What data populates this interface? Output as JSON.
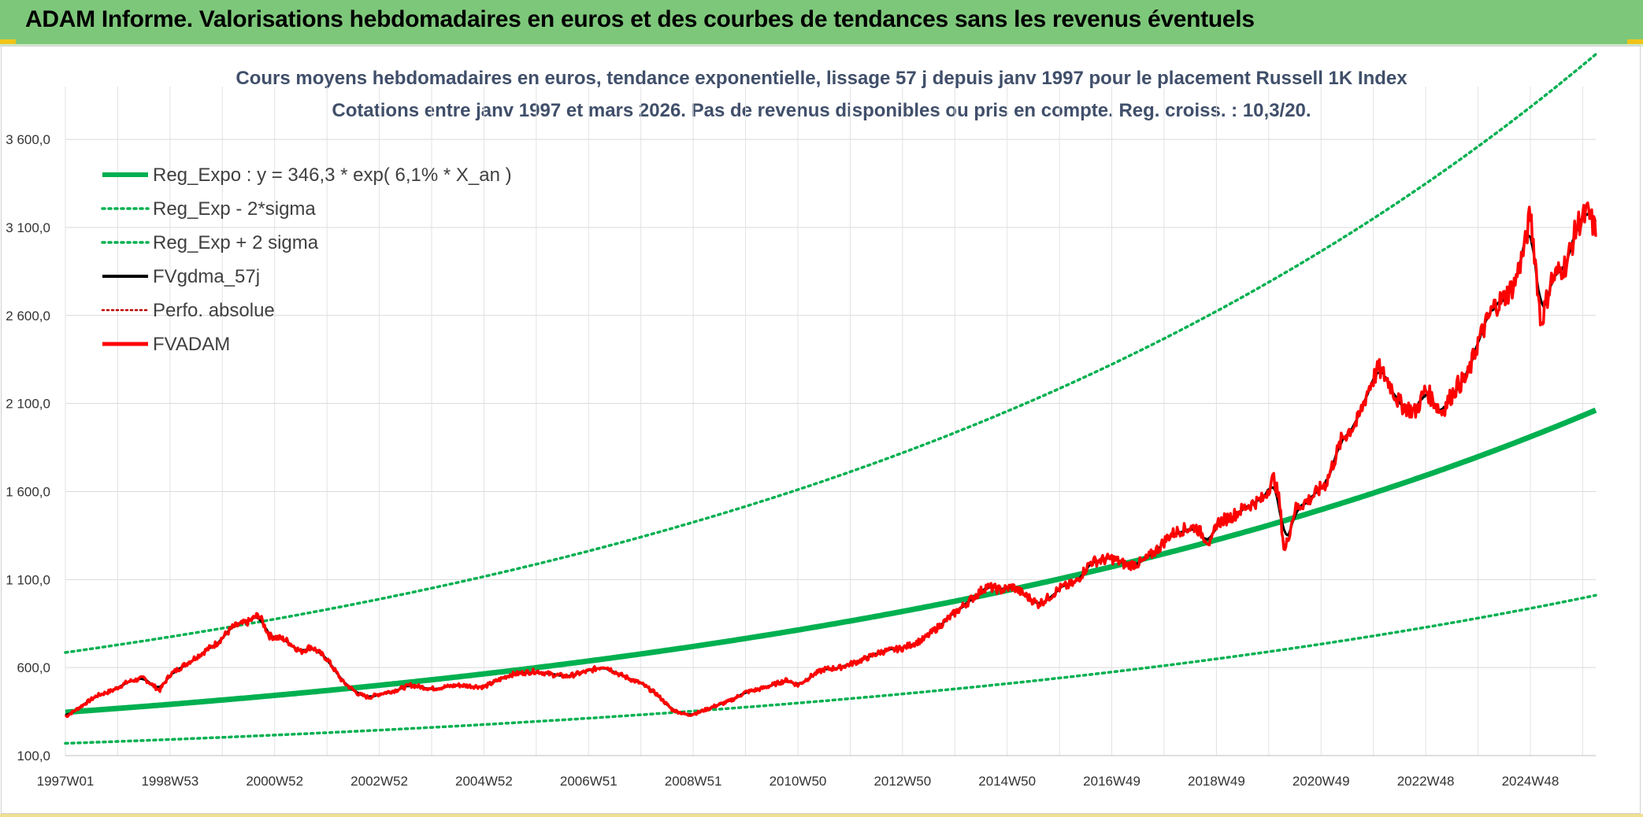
{
  "header": {
    "title": "ADAM Informe. Valorisations hebdomadaires en euros et des courbes de tendances sans les revenus éventuels"
  },
  "chart_data": {
    "type": "line",
    "title": "Cours moyens hebdomadaires en euros, tendance exponentielle, lissage 57 j depuis janv 1997 pour le placement Russell 1K Index",
    "subtitle": "Cotations entre janv 1997 et mars 2026. Pas de revenus disponibles ou pris en compte. Reg. croiss. : 10,3/20.",
    "xlabel": "",
    "ylabel": "",
    "ylim": [
      100,
      3900
    ],
    "xlim": [
      1997.0,
      2026.25
    ],
    "grid": true,
    "legend_position": "top-left",
    "y_ticks": [
      100,
      600,
      1100,
      1600,
      2100,
      2600,
      3100,
      3600
    ],
    "y_tick_labels": [
      "100,0",
      "600,0",
      "1 100,0",
      "1 600,0",
      "2 100,0",
      "2 600,0",
      "3 100,0",
      "3 600,0"
    ],
    "x_ticks": [
      1997.0,
      1999.0,
      2001.0,
      2003.0,
      2005.0,
      2007.0,
      2009.0,
      2011.0,
      2013.0,
      2015.0,
      2017.0,
      2019.0,
      2021.0,
      2023.0,
      2025.0
    ],
    "x_tick_labels": [
      "1997W01",
      "1998W53",
      "2000W52",
      "2002W52",
      "2004W52",
      "2006W51",
      "2008W51",
      "2010W50",
      "2012W50",
      "2014W50",
      "2016W49",
      "2018W49",
      "2020W49",
      "2022W48",
      "2024W48"
    ],
    "trend": {
      "a": 346.3,
      "b": 0.061,
      "lower_factor": 0.49,
      "upper_factor": 1.98
    },
    "series": [
      {
        "name": "Reg_Expo : y = 346,3 * exp( 6,1% *  X_an )",
        "color": "#00b050",
        "style": "solid-thick",
        "values": "computed from trend: a*exp(b*(x-1997))"
      },
      {
        "name": "Reg_Exp - 2*sigma",
        "color": "#00b050",
        "style": "dotted",
        "values": "computed from trend: lower_factor*a*exp(b*(x-1997))"
      },
      {
        "name": "Reg_Exp + 2 sigma",
        "color": "#00b050",
        "style": "dotted",
        "values": "computed from trend: upper_factor*a*exp(b*(x-1997))"
      },
      {
        "name": "FVgdma_57j",
        "color": "#000000",
        "style": "solid",
        "values": "57-day smoothing of FVADAM"
      },
      {
        "name": "Perfo. absolue",
        "color": "#c00000",
        "style": "dotted",
        "values": []
      },
      {
        "name": "FVADAM",
        "color": "#ff0000",
        "style": "solid-thick",
        "x": [
          1997.0,
          1997.3,
          1997.6,
          1997.9,
          1998.2,
          1998.5,
          1998.8,
          1999.0,
          1999.3,
          1999.6,
          1999.9,
          2000.2,
          2000.5,
          2000.7,
          2000.9,
          2001.2,
          2001.5,
          2001.7,
          2002.0,
          2002.3,
          2002.6,
          2002.8,
          2003.0,
          2003.3,
          2003.6,
          2004.0,
          2004.5,
          2005.0,
          2005.5,
          2006.0,
          2006.3,
          2006.6,
          2007.0,
          2007.3,
          2007.6,
          2008.0,
          2008.3,
          2008.6,
          2008.9,
          2009.1,
          2009.4,
          2009.7,
          2010.0,
          2010.3,
          2010.5,
          2010.8,
          2011.0,
          2011.3,
          2011.5,
          2011.8,
          2012.2,
          2012.6,
          2013.0,
          2013.4,
          2013.8,
          2014.2,
          2014.6,
          2014.9,
          2015.1,
          2015.4,
          2015.6,
          2015.8,
          2016.0,
          2016.3,
          2016.6,
          2017.0,
          2017.3,
          2017.6,
          2017.9,
          2018.1,
          2018.3,
          2018.6,
          2018.9,
          2019.0,
          2019.3,
          2019.6,
          2019.9,
          2020.1,
          2020.2,
          2020.3,
          2020.5,
          2020.8,
          2021.1,
          2021.4,
          2021.7,
          2021.9,
          2022.1,
          2022.3,
          2022.5,
          2022.8,
          2023.0,
          2023.3,
          2023.6,
          2023.8,
          2024.0,
          2024.3,
          2024.5,
          2024.7,
          2024.9,
          2025.0,
          2025.1,
          2025.2,
          2025.4,
          2025.7,
          2025.9,
          2026.1,
          2026.25
        ],
        "values": [
          320,
          380,
          440,
          470,
          520,
          540,
          470,
          560,
          620,
          680,
          740,
          830,
          860,
          900,
          780,
          760,
          690,
          720,
          650,
          520,
          450,
          430,
          450,
          470,
          500,
          480,
          500,
          490,
          560,
          580,
          560,
          550,
          580,
          610,
          560,
          510,
          450,
          360,
          330,
          345,
          380,
          410,
          460,
          480,
          500,
          530,
          500,
          560,
          590,
          600,
          640,
          690,
          710,
          760,
          860,
          960,
          1060,
          1040,
          1060,
          1000,
          960,
          1000,
          1050,
          1080,
          1200,
          1220,
          1180,
          1200,
          1280,
          1350,
          1380,
          1400,
          1300,
          1420,
          1460,
          1520,
          1560,
          1680,
          1550,
          1250,
          1500,
          1560,
          1650,
          1900,
          2000,
          2180,
          2300,
          2220,
          2100,
          2050,
          2180,
          2050,
          2200,
          2250,
          2450,
          2650,
          2700,
          2780,
          3000,
          3180,
          2900,
          2550,
          2800,
          2900,
          3120,
          3180,
          3080
        ]
      }
    ]
  }
}
